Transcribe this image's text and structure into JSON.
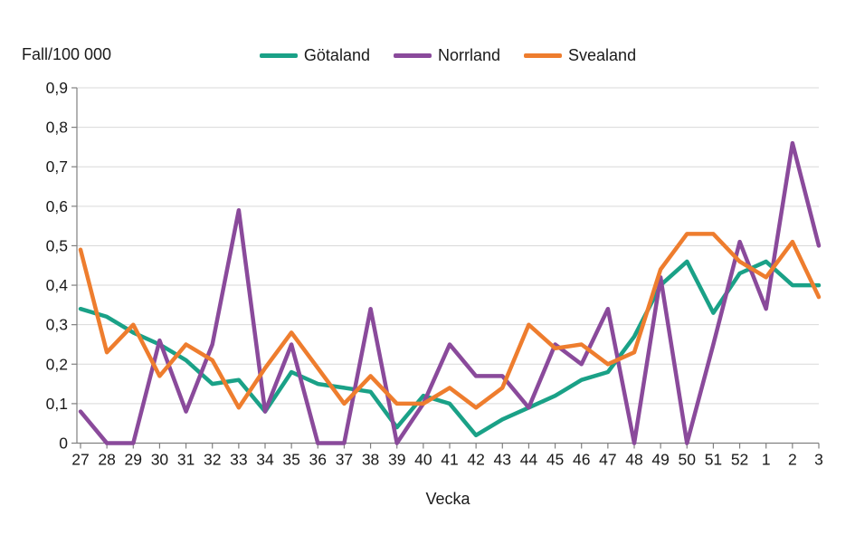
{
  "page": {
    "background": "#ffffff"
  },
  "chart_data": {
    "type": "line",
    "title": "Fall/100 000",
    "xlabel": "Vecka",
    "ylabel": "Fall/100 000",
    "categories": [
      "27",
      "28",
      "29",
      "30",
      "31",
      "32",
      "33",
      "34",
      "35",
      "36",
      "37",
      "38",
      "39",
      "40",
      "41",
      "42",
      "43",
      "44",
      "45",
      "46",
      "47",
      "48",
      "49",
      "50",
      "51",
      "52",
      "1",
      "2",
      "3"
    ],
    "y_ticks": [
      "0",
      "0,1",
      "0,2",
      "0,3",
      "0,4",
      "0,5",
      "0,6",
      "0,7",
      "0,8",
      "0,9"
    ],
    "ylim": [
      0,
      0.9
    ],
    "grid": "horizontal",
    "legend_position": "top-center",
    "series": [
      {
        "name": "Götaland",
        "color": "#1aa187",
        "values": [
          0.34,
          0.32,
          0.28,
          0.25,
          0.21,
          0.15,
          0.16,
          0.08,
          0.18,
          0.15,
          0.14,
          0.13,
          0.04,
          0.12,
          0.1,
          0.02,
          0.06,
          0.09,
          0.12,
          0.16,
          0.18,
          0.27,
          0.4,
          0.46,
          0.33,
          0.43,
          0.46,
          0.4,
          0.4
        ]
      },
      {
        "name": "Norrland",
        "color": "#8a4a9b",
        "values": [
          0.08,
          0.0,
          0.0,
          0.26,
          0.08,
          0.25,
          0.59,
          0.08,
          0.25,
          0.0,
          0.0,
          0.34,
          0.0,
          0.1,
          0.25,
          0.17,
          0.17,
          0.09,
          0.25,
          0.2,
          0.34,
          0.0,
          0.42,
          0.0,
          0.25,
          0.51,
          0.34,
          0.76,
          0.5
        ]
      },
      {
        "name": "Svealand",
        "color": "#ee7d2e",
        "values": [
          0.49,
          0.23,
          0.3,
          0.17,
          0.25,
          0.21,
          0.09,
          0.19,
          0.28,
          0.19,
          0.1,
          0.17,
          0.1,
          0.1,
          0.14,
          0.09,
          0.14,
          0.3,
          0.24,
          0.25,
          0.2,
          0.23,
          0.44,
          0.53,
          0.53,
          0.46,
          0.42,
          0.51,
          0.37
        ]
      }
    ],
    "colors": {
      "grid": "#d9d9d9",
      "axis": "#808080",
      "text": "#1a1a1a"
    }
  }
}
